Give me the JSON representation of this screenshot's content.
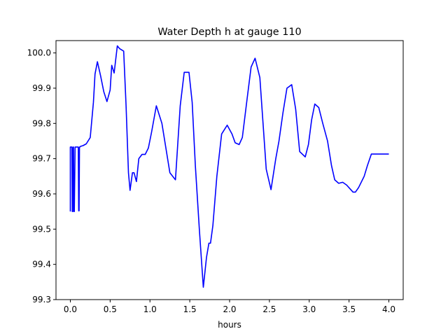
{
  "chart_data": {
    "type": "line",
    "title": "Water Depth h at gauge 110",
    "xlabel": "hours",
    "ylabel": "",
    "xlim": [
      -0.18,
      4.18
    ],
    "ylim": [
      99.3,
      100.035
    ],
    "xticks": [
      0.0,
      0.5,
      1.0,
      1.5,
      2.0,
      2.5,
      3.0,
      3.5,
      4.0
    ],
    "xtick_labels": [
      "0.0",
      "0.5",
      "1.0",
      "1.5",
      "2.0",
      "2.5",
      "3.0",
      "3.5",
      "4.0"
    ],
    "yticks": [
      99.3,
      99.4,
      99.5,
      99.6,
      99.7,
      99.8,
      99.9,
      100.0
    ],
    "ytick_labels": [
      "99.3",
      "99.4",
      "99.5",
      "99.6",
      "99.7",
      "99.8",
      "99.9",
      "100.0"
    ],
    "grid": false,
    "series": [
      {
        "color": "#0000ff",
        "x": [
          0.0,
          0.0,
          0.005,
          0.01,
          0.02,
          0.025,
          0.03,
          0.035,
          0.04,
          0.045,
          0.05,
          0.06,
          0.07,
          0.08,
          0.09,
          0.1,
          0.105,
          0.11,
          0.115,
          0.12,
          0.13,
          0.16,
          0.2,
          0.25,
          0.29,
          0.31,
          0.34,
          0.38,
          0.42,
          0.46,
          0.5,
          0.52,
          0.55,
          0.59,
          0.62,
          0.67,
          0.7,
          0.73,
          0.75,
          0.78,
          0.8,
          0.83,
          0.86,
          0.9,
          0.94,
          0.98,
          1.02,
          1.08,
          1.15,
          1.25,
          1.32,
          1.38,
          1.43,
          1.49,
          1.53,
          1.57,
          1.62,
          1.67,
          1.71,
          1.74,
          1.76,
          1.79,
          1.84,
          1.9,
          1.97,
          2.03,
          2.07,
          2.12,
          2.16,
          2.22,
          2.27,
          2.32,
          2.38,
          2.42,
          2.46,
          2.52,
          2.58,
          2.62,
          2.67,
          2.72,
          2.78,
          2.83,
          2.88,
          2.95,
          2.99,
          3.03,
          3.07,
          3.12,
          3.17,
          3.23,
          3.28,
          3.32,
          3.37,
          3.42,
          3.47,
          3.51,
          3.55,
          3.58,
          3.62,
          3.69,
          3.73,
          3.78,
          3.83,
          3.87,
          3.91,
          3.96,
          4.0
        ],
        "y": [
          99.55,
          99.733,
          99.733,
          99.733,
          99.733,
          99.55,
          99.55,
          99.733,
          99.733,
          99.55,
          99.55,
          99.733,
          99.733,
          99.733,
          99.733,
          99.733,
          99.552,
          99.552,
          99.733,
          99.733,
          99.735,
          99.737,
          99.742,
          99.76,
          99.86,
          99.94,
          99.975,
          99.935,
          99.89,
          99.862,
          99.895,
          99.965,
          99.943,
          100.02,
          100.012,
          100.005,
          99.85,
          99.66,
          99.61,
          99.66,
          99.66,
          99.635,
          99.7,
          99.712,
          99.712,
          99.73,
          99.775,
          99.85,
          99.8,
          99.66,
          99.64,
          99.85,
          99.945,
          99.945,
          99.86,
          99.68,
          99.5,
          99.335,
          99.42,
          99.46,
          99.46,
          99.51,
          99.65,
          99.77,
          99.795,
          99.77,
          99.745,
          99.74,
          99.76,
          99.87,
          99.96,
          99.985,
          99.93,
          99.8,
          99.67,
          99.612,
          99.7,
          99.75,
          99.83,
          99.9,
          99.91,
          99.84,
          99.72,
          99.705,
          99.74,
          99.81,
          99.855,
          99.845,
          99.8,
          99.75,
          99.68,
          99.64,
          99.63,
          99.633,
          99.625,
          99.615,
          99.605,
          99.605,
          99.618,
          99.65,
          99.68,
          99.713,
          99.713,
          99.713,
          99.713,
          99.713,
          99.713
        ]
      }
    ]
  }
}
